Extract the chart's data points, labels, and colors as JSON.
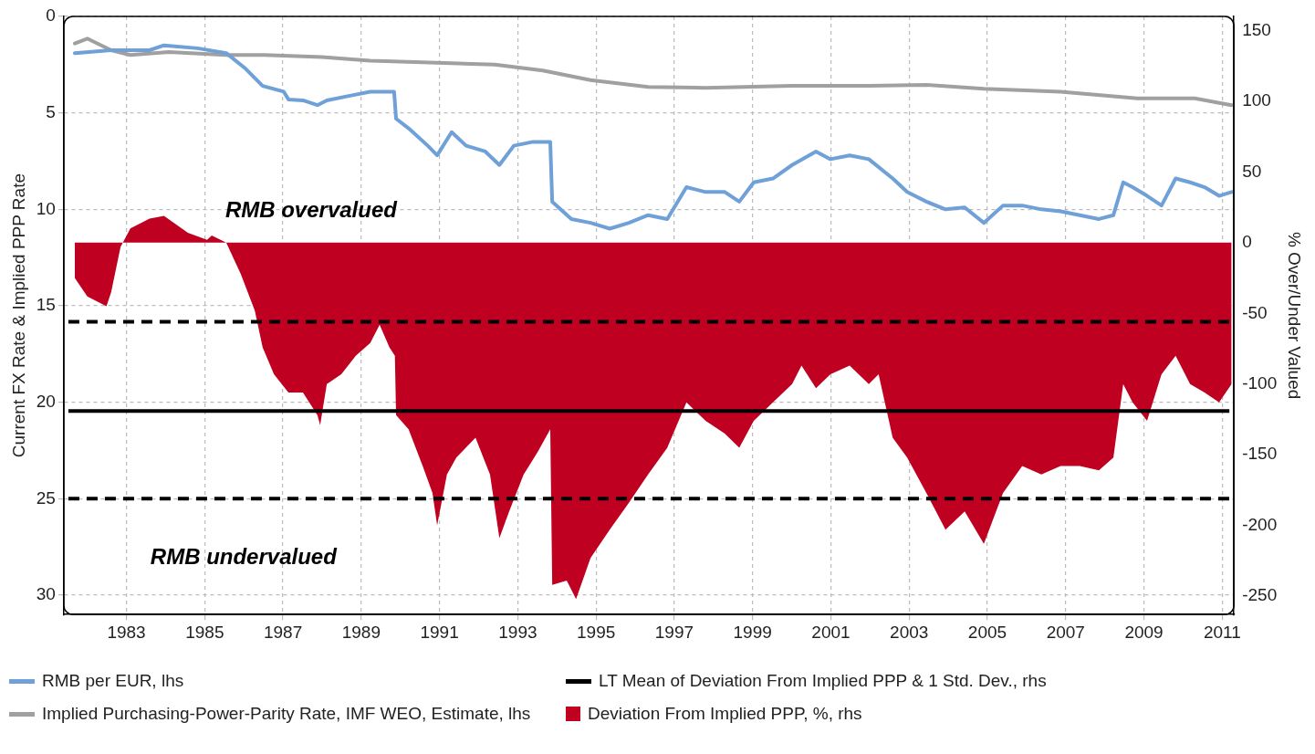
{
  "chart_data": {
    "type": "line",
    "ylabel": "Current FX Rate & Implied PPP Rate",
    "y2label": "% Over/Under Valued",
    "xlim": [
      1981.4,
      2011.3
    ],
    "xticks": [
      1983,
      1985,
      1987,
      1989,
      1991,
      1993,
      1995,
      1997,
      1999,
      2001,
      2003,
      2005,
      2007,
      2009,
      2011
    ],
    "ylim": [
      31,
      0
    ],
    "yticks": [
      0,
      5,
      10,
      15,
      20,
      25,
      30
    ],
    "y2lim": [
      -263,
      160
    ],
    "y2ticks": [
      150,
      100,
      50,
      0,
      -50,
      -100,
      -150,
      -200,
      -250
    ],
    "grid": true,
    "legend": "bottom",
    "marker": "none",
    "line_style": "solid",
    "annotations": [
      "RMB overvalued",
      "RMB undervalued"
    ],
    "ref_lines": [
      {
        "axis": "y2",
        "value": -119,
        "label": "LT Mean of Deviation From Implied PPP & 1 Std. Dev., rhs",
        "color": "#000000",
        "line_style": "solid"
      },
      {
        "axis": "y2",
        "value": -56,
        "color": "#000000",
        "line_style": "dashed"
      },
      {
        "axis": "y2",
        "value": -181,
        "color": "#000000",
        "line_style": "dashed"
      }
    ],
    "series": [
      {
        "name": "RMB per EUR, lhs",
        "type": "line",
        "color": "#6fa0d8",
        "x": [
          1981.68,
          1982.61,
          1983.59,
          1983.96,
          1984.82,
          1985.55,
          1986.04,
          1986.48,
          1987.02,
          1987.14,
          1987.51,
          1987.88,
          1988.12,
          1988.74,
          1989.23,
          1989.84,
          1989.89,
          1990.21,
          1990.7,
          1990.94,
          1991.31,
          1991.68,
          1992.17,
          1992.53,
          1992.9,
          1993.39,
          1993.83,
          1993.88,
          1994.37,
          1994.86,
          1995.35,
          1995.84,
          1996.33,
          1996.82,
          1997.31,
          1997.8,
          1998.29,
          1998.66,
          1999.03,
          1999.52,
          2000.01,
          2000.62,
          2000.99,
          2001.48,
          2001.97,
          2002.58,
          2002.95,
          2003.44,
          2003.93,
          2004.42,
          2004.91,
          2005.4,
          2005.89,
          2006.38,
          2006.87,
          2007.36,
          2007.85,
          2008.22,
          2008.47,
          2008.71,
          2009.08,
          2009.45,
          2009.81,
          2010.18,
          2010.55,
          2010.92,
          2011.24
        ],
        "values": [
          1.9,
          1.75,
          1.75,
          1.5,
          1.65,
          1.9,
          2.7,
          3.6,
          3.9,
          4.3,
          4.35,
          4.6,
          4.35,
          4.1,
          3.9,
          3.9,
          5.3,
          5.8,
          6.7,
          7.2,
          6.0,
          6.7,
          7.0,
          7.7,
          6.7,
          6.5,
          6.5,
          9.6,
          10.5,
          10.7,
          11.0,
          10.7,
          10.3,
          10.5,
          8.85,
          9.1,
          9.1,
          9.6,
          8.6,
          8.4,
          7.7,
          7.0,
          7.4,
          7.2,
          7.4,
          8.4,
          9.1,
          9.6,
          10.0,
          9.9,
          10.7,
          9.8,
          9.8,
          10.0,
          10.1,
          10.3,
          10.5,
          10.3,
          8.6,
          8.85,
          9.3,
          9.8,
          8.4,
          8.6,
          8.85,
          9.3,
          9.1
        ]
      },
      {
        "name": "Implied Purchasing-Power-Parity Rate, IMF WEO, Estimate, lhs",
        "type": "line",
        "color": "#a0a0a0",
        "x": [
          1981.68,
          1982.0,
          1982.61,
          1983.1,
          1984.08,
          1985.55,
          1986.53,
          1988.0,
          1989.23,
          1990.94,
          1992.41,
          1993.64,
          1994.86,
          1996.33,
          1997.8,
          2000.01,
          2001.97,
          2003.44,
          2004.91,
          2006.87,
          2008.83,
          2010.3,
          2011.24
        ],
        "values": [
          1.4,
          1.15,
          1.75,
          2.0,
          1.85,
          2.0,
          2.0,
          2.1,
          2.3,
          2.4,
          2.5,
          2.8,
          3.3,
          3.65,
          3.7,
          3.6,
          3.6,
          3.55,
          3.75,
          3.9,
          4.25,
          4.25,
          4.6
        ]
      },
      {
        "name": "Deviation From Implied PPP, %, rhs",
        "type": "area",
        "axis": "y2",
        "color": "#c00020",
        "x": [
          1981.68,
          1982.0,
          1982.49,
          1982.61,
          1982.85,
          1983.1,
          1983.59,
          1983.96,
          1984.57,
          1985.06,
          1985.18,
          1985.55,
          1985.92,
          1986.28,
          1986.48,
          1986.77,
          1987.14,
          1987.51,
          1987.88,
          1987.95,
          1988.12,
          1988.49,
          1988.86,
          1989.23,
          1989.47,
          1989.72,
          1989.86,
          1989.89,
          1990.21,
          1990.57,
          1990.82,
          1990.94,
          1991.19,
          1991.43,
          1991.92,
          1992.29,
          1992.53,
          1992.78,
          1993.15,
          1993.51,
          1993.83,
          1993.88,
          1994.25,
          1994.49,
          1994.86,
          1995.35,
          1995.84,
          1996.33,
          1996.82,
          1997.31,
          1997.8,
          1998.29,
          1998.66,
          1999.03,
          1999.52,
          2000.01,
          2000.25,
          2000.62,
          2000.99,
          2001.48,
          2001.97,
          2002.22,
          2002.58,
          2002.95,
          2003.44,
          2003.93,
          2004.42,
          2004.91,
          2005.4,
          2005.89,
          2006.38,
          2006.87,
          2007.36,
          2007.85,
          2008.22,
          2008.47,
          2008.71,
          2009.08,
          2009.45,
          2009.81,
          2010.18,
          2010.55,
          2010.92,
          2011.24
        ],
        "values": [
          -25,
          -38,
          -45,
          -35,
          -3,
          10,
          17,
          19,
          7,
          2,
          5,
          0,
          -22,
          -48,
          -74,
          -93,
          -106,
          -106,
          -122,
          -129,
          -100,
          -93,
          -80,
          -71,
          -58,
          -74,
          -80,
          -122,
          -132,
          -158,
          -177,
          -200,
          -164,
          -152,
          -138,
          -164,
          -209,
          -190,
          -164,
          -148,
          -132,
          -242,
          -239,
          -252,
          -223,
          -203,
          -184,
          -164,
          -145,
          -113,
          -126,
          -135,
          -145,
          -126,
          -113,
          -100,
          -87,
          -103,
          -93,
          -87,
          -100,
          -93,
          -138,
          -152,
          -177,
          -203,
          -190,
          -213,
          -177,
          -158,
          -164,
          -158,
          -158,
          -161,
          -152,
          -100,
          -113,
          -126,
          -93,
          -80,
          -100,
          -106,
          -113,
          -100
        ]
      }
    ]
  }
}
